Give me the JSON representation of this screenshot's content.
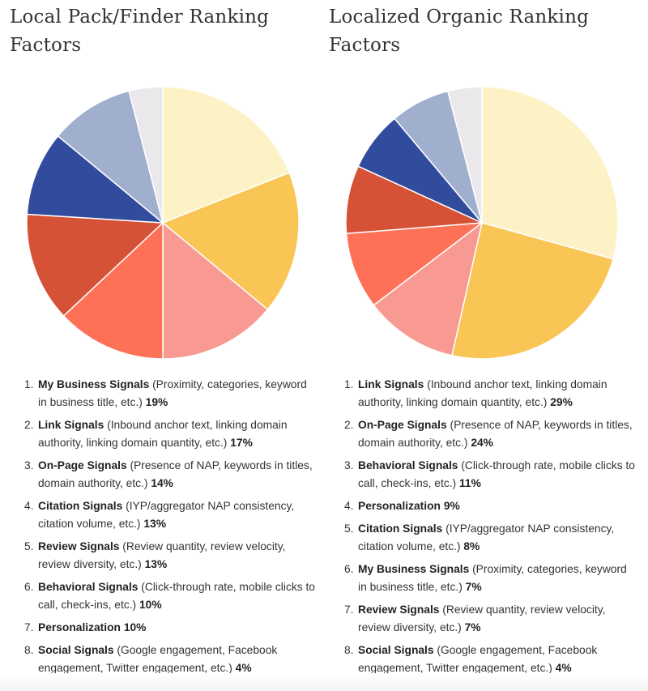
{
  "chart_data": [
    {
      "type": "pie",
      "title": "Local Pack/Finder Ranking Factors",
      "categories": [
        "My Business Signals",
        "Link Signals",
        "On-Page Signals",
        "Citation Signals",
        "Review Signals",
        "Behavioral Signals",
        "Personalization",
        "Social Signals"
      ],
      "values": [
        19,
        17,
        14,
        13,
        13,
        10,
        10,
        4
      ],
      "colors": [
        "#fdf2c6",
        "#f9c555",
        "#f99a92",
        "#fe7157",
        "#d65237",
        "#324c9d",
        "#a1afcf",
        "#ebe8ec"
      ],
      "items": [
        {
          "num": "1.",
          "name": "My Business Signals",
          "desc": " (Proximity, categories, keyword in business title, etc.) ",
          "pct": "19%"
        },
        {
          "num": "2.",
          "name": "Link Signals",
          "desc": " (Inbound anchor text, linking domain authority, linking domain quantity, etc.) ",
          "pct": "17%"
        },
        {
          "num": "3.",
          "name": "On-Page Signals",
          "desc": " (Presence of NAP, keywords in titles, domain authority, etc.) ",
          "pct": "14%"
        },
        {
          "num": "4.",
          "name": "Citation Signals",
          "desc": " (IYP/aggregator NAP consistency, citation volume, etc.) ",
          "pct": "13%"
        },
        {
          "num": "5.",
          "name": "Review Signals",
          "desc": " (Review quantity, review velocity, review diversity, etc.) ",
          "pct": "13%"
        },
        {
          "num": "6.",
          "name": "Behavioral Signals",
          "desc": " (Click-through rate, mobile clicks to call, check-ins, etc.) ",
          "pct": "10%"
        },
        {
          "num": "7.",
          "name": "Personalization",
          "desc": "  ",
          "pct": "10%"
        },
        {
          "num": "8.",
          "name": "Social Signals",
          "desc": " (Google engagement, Facebook engagement, Twitter engagement, etc.) ",
          "pct": "4%"
        }
      ]
    },
    {
      "type": "pie",
      "title": "Localized Organic Ranking Factors",
      "categories": [
        "Link Signals",
        "On-Page Signals",
        "Behavioral Signals",
        "Personalization",
        "Citation Signals",
        "My Business Signals",
        "Review Signals",
        "Social Signals"
      ],
      "values": [
        29,
        24,
        11,
        9,
        8,
        7,
        7,
        4
      ],
      "colors": [
        "#fdf2c6",
        "#f9c555",
        "#f99a92",
        "#fe7157",
        "#d65237",
        "#324c9d",
        "#a1afcf",
        "#ebe8ec"
      ],
      "items": [
        {
          "num": "1.",
          "name": "Link Signals",
          "desc": " (Inbound anchor text, linking domain authority, linking domain quantity, etc.) ",
          "pct": "29%"
        },
        {
          "num": "2.",
          "name": "On-Page Signals",
          "desc": " (Presence of NAP, keywords in titles, domain authority, etc.) ",
          "pct": "24%"
        },
        {
          "num": "3.",
          "name": "Behavioral Signals",
          "desc": " (Click-through rate, mobile clicks to call, check-ins, etc.) ",
          "pct": "11%"
        },
        {
          "num": "4.",
          "name": "Personalization",
          "desc": "  ",
          "pct": "9%"
        },
        {
          "num": "5.",
          "name": "Citation Signals",
          "desc": " (IYP/aggregator NAP consistency, citation volume, etc.) ",
          "pct": "8%"
        },
        {
          "num": "6.",
          "name": "My Business Signals",
          "desc": " (Proximity, categories, keyword in business title, etc.) ",
          "pct": "7%"
        },
        {
          "num": "7.",
          "name": "Review Signals",
          "desc": " (Review quantity, review velocity, review diversity, etc.) ",
          "pct": "7%"
        },
        {
          "num": "8.",
          "name": "Social Signals",
          "desc": " (Google engagement, Facebook engagement, Twitter engagement, etc.) ",
          "pct": "4%"
        }
      ]
    }
  ]
}
